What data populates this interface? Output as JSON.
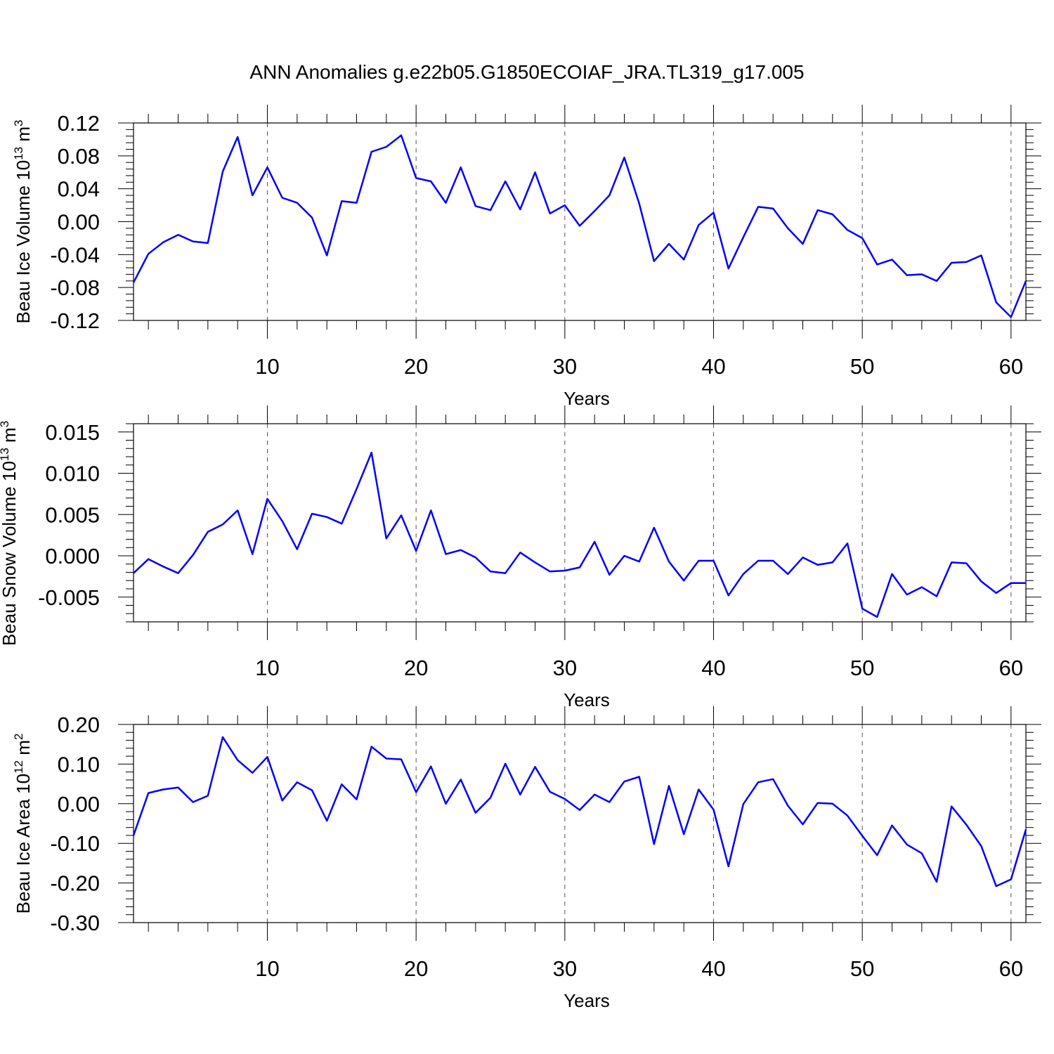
{
  "title": "ANN Anomalies g.e22b05.G1850ECOIAF_JRA.TL319_g17.005",
  "colors": {
    "line": "#0000ff",
    "axis": "#000000",
    "grid": "#555555"
  },
  "chart_data": [
    {
      "type": "line",
      "xlabel": "Years",
      "ylabel": "Beau Ice Volume 10",
      "ylabel_sup": "13",
      "ylabel_unit": "m",
      "ylabel_unit_sup": "3",
      "xlim": [
        1,
        61
      ],
      "ylim": [
        -0.12,
        0.12
      ],
      "xticks": [
        10,
        20,
        30,
        40,
        50,
        60
      ],
      "yticks": [
        -0.12,
        -0.08,
        -0.04,
        0.0,
        0.04,
        0.08,
        0.12
      ],
      "ytick_labels": [
        "-0.12",
        "-0.08",
        "-0.04",
        "0.00",
        "0.04",
        "0.08",
        "0.12"
      ],
      "grid_x": true,
      "x": [
        1,
        2,
        3,
        4,
        5,
        6,
        7,
        8,
        9,
        10,
        11,
        12,
        13,
        14,
        15,
        16,
        17,
        18,
        19,
        20,
        21,
        22,
        23,
        24,
        25,
        26,
        27,
        28,
        29,
        30,
        31,
        32,
        33,
        34,
        35,
        36,
        37,
        38,
        39,
        40,
        41,
        42,
        43,
        44,
        45,
        46,
        47,
        48,
        49,
        50,
        51,
        52,
        53,
        54,
        55,
        56,
        57,
        58,
        59,
        60,
        61
      ],
      "values": [
        -0.074,
        -0.039,
        -0.025,
        -0.016,
        -0.024,
        -0.026,
        0.061,
        0.103,
        0.032,
        0.066,
        0.029,
        0.023,
        0.005,
        -0.041,
        0.025,
        0.023,
        0.085,
        0.091,
        0.105,
        0.053,
        0.049,
        0.023,
        0.066,
        0.019,
        0.014,
        0.049,
        0.015,
        0.06,
        0.01,
        0.02,
        -0.005,
        0.013,
        0.032,
        0.078,
        0.022,
        -0.048,
        -0.027,
        -0.046,
        -0.004,
        0.011,
        -0.057,
        -0.019,
        0.018,
        0.016,
        -0.008,
        -0.027,
        0.014,
        0.009,
        -0.01,
        -0.02,
        -0.052,
        -0.046,
        -0.065,
        -0.064,
        -0.072,
        -0.05,
        -0.049,
        -0.041,
        -0.098,
        -0.116,
        -0.072
      ]
    },
    {
      "type": "line",
      "xlabel": "Years",
      "ylabel": "Beau Snow Volume 10",
      "ylabel_sup": "13",
      "ylabel_unit": "m",
      "ylabel_unit_sup": "3",
      "xlim": [
        1,
        61
      ],
      "ylim": [
        -0.008,
        0.016
      ],
      "xticks": [
        10,
        20,
        30,
        40,
        50,
        60
      ],
      "yticks": [
        -0.005,
        0.0,
        0.005,
        0.01,
        0.015
      ],
      "ytick_labels": [
        "-0.005",
        "0.000",
        "0.005",
        "0.010",
        "0.015"
      ],
      "grid_x": true,
      "x": [
        1,
        2,
        3,
        4,
        5,
        6,
        7,
        8,
        9,
        10,
        11,
        12,
        13,
        14,
        15,
        16,
        17,
        18,
        19,
        20,
        21,
        22,
        23,
        24,
        25,
        26,
        27,
        28,
        29,
        30,
        31,
        32,
        33,
        34,
        35,
        36,
        37,
        38,
        39,
        40,
        41,
        42,
        43,
        44,
        45,
        46,
        47,
        48,
        49,
        50,
        51,
        52,
        53,
        54,
        55,
        56,
        57,
        58,
        59,
        60,
        61
      ],
      "values": [
        -0.0021,
        -0.0004,
        -0.0013,
        -0.0021,
        0.0001,
        0.0029,
        0.0038,
        0.0055,
        0.0002,
        0.0069,
        0.0042,
        0.0008,
        0.0051,
        0.0047,
        0.0039,
        0.0081,
        0.0125,
        0.0021,
        0.0049,
        0.0006,
        0.0055,
        0.0002,
        0.0007,
        -0.0002,
        -0.0019,
        -0.0021,
        0.0004,
        -0.0008,
        -0.0019,
        -0.0018,
        -0.0014,
        0.0017,
        -0.0023,
        0.0,
        -0.0007,
        0.0034,
        -0.0007,
        -0.003,
        -0.0006,
        -0.0006,
        -0.0048,
        -0.0022,
        -0.0006,
        -0.0006,
        -0.0022,
        -0.0002,
        -0.0011,
        -0.0008,
        0.0015,
        -0.0064,
        -0.0074,
        -0.0022,
        -0.0047,
        -0.0038,
        -0.0049,
        -0.0008,
        -0.0009,
        -0.0031,
        -0.0045,
        -0.0033,
        -0.0033
      ]
    },
    {
      "type": "line",
      "xlabel": "Years",
      "ylabel": "Beau Ice Area 10",
      "ylabel_sup": "12",
      "ylabel_unit": "m",
      "ylabel_unit_sup": "2",
      "xlim": [
        1,
        61
      ],
      "ylim": [
        -0.3,
        0.2
      ],
      "xticks": [
        10,
        20,
        30,
        40,
        50,
        60
      ],
      "yticks": [
        -0.3,
        -0.2,
        -0.1,
        0.0,
        0.1,
        0.2
      ],
      "ytick_labels": [
        "-0.30",
        "-0.20",
        "-0.10",
        "0.00",
        "0.10",
        "0.20"
      ],
      "grid_x": true,
      "x": [
        1,
        2,
        3,
        4,
        5,
        6,
        7,
        8,
        9,
        10,
        11,
        12,
        13,
        14,
        15,
        16,
        17,
        18,
        19,
        20,
        21,
        22,
        23,
        24,
        25,
        26,
        27,
        28,
        29,
        30,
        31,
        32,
        33,
        34,
        35,
        36,
        37,
        38,
        39,
        40,
        41,
        42,
        43,
        44,
        45,
        46,
        47,
        48,
        49,
        50,
        51,
        52,
        53,
        54,
        55,
        56,
        57,
        58,
        59,
        60,
        61
      ],
      "values": [
        -0.08,
        0.027,
        0.036,
        0.041,
        0.004,
        0.02,
        0.168,
        0.11,
        0.078,
        0.118,
        0.008,
        0.054,
        0.034,
        -0.043,
        0.049,
        0.011,
        0.144,
        0.114,
        0.112,
        0.029,
        0.094,
        0.0,
        0.061,
        -0.023,
        0.015,
        0.101,
        0.023,
        0.093,
        0.03,
        0.012,
        -0.016,
        0.023,
        0.004,
        0.056,
        0.068,
        -0.102,
        0.045,
        -0.077,
        0.036,
        -0.015,
        -0.158,
        -0.001,
        0.054,
        0.062,
        -0.005,
        -0.052,
        0.002,
        0.0,
        -0.03,
        -0.081,
        -0.13,
        -0.055,
        -0.103,
        -0.125,
        -0.197,
        -0.007,
        -0.053,
        -0.107,
        -0.208,
        -0.191,
        -0.065
      ]
    }
  ]
}
